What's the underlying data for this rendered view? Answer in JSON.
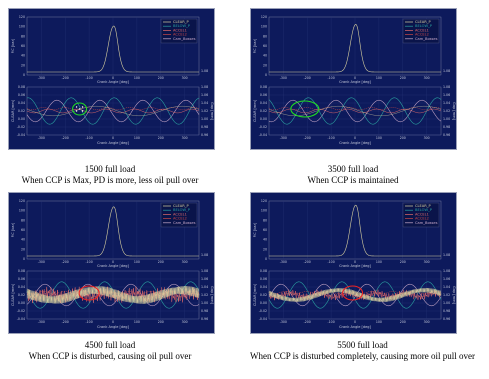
{
  "colors": {
    "panel_bg": "#0d1a5c",
    "pressure": "#d8d0a0",
    "ccp": "#2aa0a0",
    "bearing": "#c8a8c8",
    "oil": "#e06a6a",
    "bearing_r": "#c84848",
    "highlight_green": "#22dd22",
    "highlight_red": "#ee2222"
  },
  "legend": [
    "CLEAR_P",
    "BELOW_P",
    "ACCEL1",
    "ACCEL2",
    "Cam_Bosses"
  ],
  "x_ticks": [
    "-300",
    "-200",
    "-100",
    "0",
    "100",
    "200",
    "300"
  ],
  "y_top_ticks": [
    "120",
    "100",
    "80",
    "60",
    "40",
    "20",
    "0"
  ],
  "y_bottom_ticks": [
    "0.08",
    "0.06",
    "0.04",
    "0.02",
    "0.00",
    "-0.02",
    "-0.04"
  ],
  "y_right_ticks": [
    "1.08",
    "1.06",
    "1.04",
    "1.02",
    "1.00",
    "0.98",
    "0.96"
  ],
  "x_label": "Crank Angle [deg]",
  "y_top_label": "P.C [bar]",
  "y_bottom_label": "CLEAR [mm]",
  "y_right_label": "Gap [mm]",
  "chart_data": [
    {
      "type": "line",
      "speed_rpm": 1500,
      "caption_line1": "1500 full load",
      "caption_line2": "When CCP is Max, PD is more,  less oil pull over",
      "highlight": {
        "color": "green",
        "x_deg": -140
      }
    },
    {
      "type": "line",
      "speed_rpm": 3500,
      "caption_line1": "3500 full load",
      "caption_line2": "When CCP is maintained",
      "highlight": {
        "color": "green",
        "x_deg": -210
      }
    },
    {
      "type": "line",
      "speed_rpm": 4500,
      "caption_line1": "4500 full load",
      "caption_line2": "When CCP is disturbed, causing oil pull over",
      "highlight": {
        "color": "red",
        "x_deg": -100
      }
    },
    {
      "type": "line",
      "speed_rpm": 5500,
      "caption_line1": "5500 full load",
      "caption_line2": "When CCP is disturbed completely, causing more oil pull over",
      "highlight": {
        "color": "red",
        "x_deg": -10
      }
    }
  ]
}
